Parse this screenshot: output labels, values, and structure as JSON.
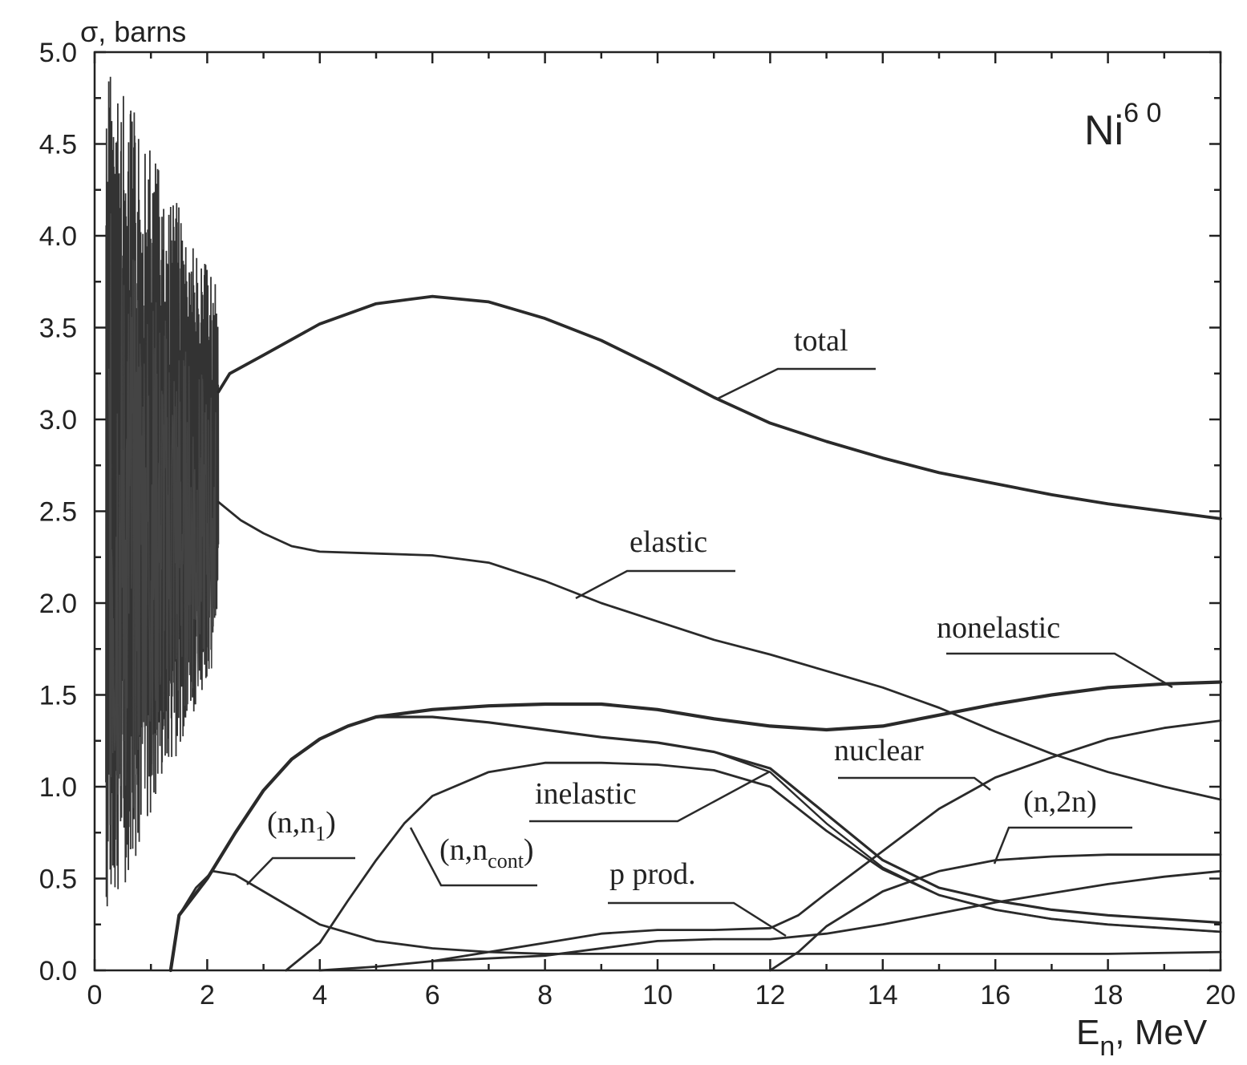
{
  "chart_data": {
    "type": "line",
    "isotope": {
      "base": "Ni",
      "sup": "6 0"
    },
    "y_axis_title": {
      "symbol": "σ",
      "rest": ", barns"
    },
    "x_axis_title": {
      "base": "E",
      "sub": "n",
      "rest": ", MeV"
    },
    "xlim": [
      0,
      20
    ],
    "ylim": [
      0,
      5
    ],
    "x_ticks": [
      "0",
      "2",
      "4",
      "6",
      "8",
      "10",
      "12",
      "14",
      "16",
      "18",
      "20"
    ],
    "y_ticks": [
      "0.0",
      "0.5",
      "1.0",
      "1.5",
      "2.0",
      "2.5",
      "3.0",
      "3.5",
      "4.0",
      "4.5",
      "5.0"
    ],
    "x_tick_values": [
      0,
      2,
      4,
      6,
      8,
      10,
      12,
      14,
      16,
      18,
      20
    ],
    "y_tick_values": [
      0,
      0.5,
      1,
      1.5,
      2,
      2.5,
      3,
      3.5,
      4,
      4.5,
      5
    ],
    "grid": false,
    "resonance_region": {
      "x_range": [
        0.2,
        2.2
      ],
      "y_range": [
        0.0,
        5.0
      ]
    },
    "series": [
      {
        "name": "total",
        "x": [
          2.2,
          2.4,
          3,
          4,
          5,
          6,
          7,
          8,
          9,
          10,
          11,
          12,
          13,
          14,
          15,
          16,
          17,
          18,
          19,
          20
        ],
        "values": [
          3.15,
          3.25,
          3.35,
          3.52,
          3.63,
          3.67,
          3.64,
          3.55,
          3.43,
          3.28,
          3.12,
          2.98,
          2.88,
          2.79,
          2.71,
          2.65,
          2.59,
          2.54,
          2.5,
          2.46
        ]
      },
      {
        "name": "elastic",
        "x": [
          2.2,
          2.6,
          3,
          3.5,
          4,
          5,
          6,
          7,
          8,
          9,
          10,
          11,
          12,
          13,
          14,
          15,
          16,
          17,
          18,
          19,
          20
        ],
        "values": [
          2.55,
          2.45,
          2.38,
          2.31,
          2.28,
          2.27,
          2.26,
          2.22,
          2.12,
          2.0,
          1.9,
          1.8,
          1.72,
          1.63,
          1.54,
          1.43,
          1.3,
          1.18,
          1.08,
          1.0,
          0.93
        ]
      },
      {
        "name": "nonelastic",
        "x": [
          1.35,
          1.5,
          2,
          2.5,
          3,
          3.5,
          4,
          4.5,
          5,
          6,
          7,
          8,
          9,
          10,
          11,
          12,
          13,
          14,
          15,
          16,
          17,
          18,
          19,
          20
        ],
        "values": [
          0.0,
          0.3,
          0.5,
          0.75,
          0.98,
          1.15,
          1.26,
          1.33,
          1.38,
          1.42,
          1.44,
          1.45,
          1.45,
          1.42,
          1.37,
          1.33,
          1.31,
          1.33,
          1.39,
          1.45,
          1.5,
          1.54,
          1.56,
          1.57
        ]
      },
      {
        "name": "nuclear",
        "x": [
          5,
          6,
          7,
          8,
          9,
          10,
          11,
          12,
          13,
          14,
          15,
          16,
          17,
          18,
          19,
          20
        ],
        "values": [
          1.38,
          1.38,
          1.35,
          1.31,
          1.27,
          1.24,
          1.19,
          1.1,
          0.85,
          0.6,
          0.45,
          0.38,
          0.33,
          0.3,
          0.28,
          0.26
        ]
      },
      {
        "name": "inelastic",
        "x": [
          5,
          6,
          7,
          8,
          9,
          10,
          11,
          12,
          13,
          14,
          15,
          16,
          17,
          18,
          19,
          20
        ],
        "values": [
          1.38,
          1.38,
          1.35,
          1.31,
          1.27,
          1.24,
          1.19,
          1.08,
          0.8,
          0.56,
          0.41,
          0.33,
          0.28,
          0.25,
          0.23,
          0.21
        ]
      },
      {
        "name": "(n,n₁)",
        "x": [
          1.35,
          1.5,
          1.8,
          2.1,
          2.5,
          3,
          4,
          5,
          6,
          7,
          8,
          9,
          10,
          12,
          14,
          16,
          18,
          20
        ],
        "values": [
          0.0,
          0.3,
          0.45,
          0.54,
          0.52,
          0.43,
          0.25,
          0.16,
          0.12,
          0.1,
          0.09,
          0.09,
          0.09,
          0.09,
          0.09,
          0.09,
          0.09,
          0.1
        ]
      },
      {
        "name": "(n,n_cont)",
        "x": [
          3.4,
          4,
          4.5,
          5,
          5.5,
          6,
          7,
          8,
          9,
          10,
          11,
          12,
          13,
          14,
          15,
          16,
          17,
          18,
          19,
          20
        ],
        "values": [
          0.0,
          0.15,
          0.38,
          0.6,
          0.8,
          0.95,
          1.08,
          1.13,
          1.13,
          1.12,
          1.09,
          1.0,
          0.76,
          0.55,
          0.41,
          0.33,
          0.28,
          0.25,
          0.23,
          0.21
        ]
      },
      {
        "name": "(n,2n)",
        "x": [
          12,
          12.5,
          13,
          14,
          15,
          16,
          17,
          18,
          19,
          20
        ],
        "values": [
          0.0,
          0.1,
          0.24,
          0.43,
          0.54,
          0.6,
          0.62,
          0.63,
          0.63,
          0.63
        ]
      },
      {
        "name": "p prod.",
        "x": [
          4,
          5,
          6,
          7,
          8,
          9,
          10,
          11,
          12,
          12.5,
          13,
          14,
          15,
          16,
          17,
          18,
          19,
          20
        ],
        "values": [
          0.0,
          0.02,
          0.05,
          0.1,
          0.15,
          0.2,
          0.22,
          0.22,
          0.23,
          0.3,
          0.42,
          0.65,
          0.88,
          1.05,
          1.16,
          1.26,
          1.32,
          1.36
        ]
      },
      {
        "name": "",
        "x": [
          6,
          8,
          10,
          11,
          12,
          13,
          14,
          15,
          16,
          17,
          18,
          19,
          20
        ],
        "values": [
          0.05,
          0.08,
          0.16,
          0.17,
          0.17,
          0.2,
          0.25,
          0.31,
          0.37,
          0.42,
          0.47,
          0.51,
          0.54
        ]
      }
    ],
    "annotations": [
      {
        "key": "total",
        "text": "total"
      },
      {
        "key": "elastic",
        "text": "elastic"
      },
      {
        "key": "nonelastic",
        "text": "nonelastic"
      },
      {
        "key": "nuclear",
        "text": "nuclear"
      },
      {
        "key": "inelastic",
        "text": "inelastic"
      },
      {
        "key": "nn1",
        "base": "(n,n",
        "sub": "1",
        "tail": ")"
      },
      {
        "key": "nncont",
        "base": "(n,n",
        "sub": "cont",
        "tail": ")"
      },
      {
        "key": "pprod",
        "text": "p prod."
      },
      {
        "key": "n2n",
        "text": "(n,2n)"
      }
    ]
  }
}
